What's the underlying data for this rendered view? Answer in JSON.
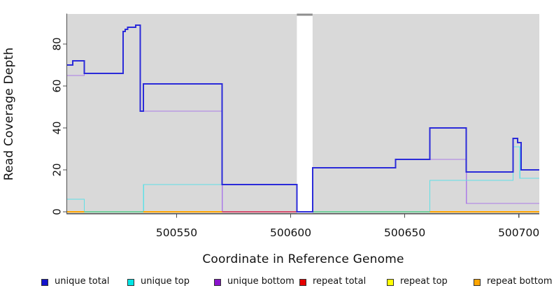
{
  "figure": {
    "background": "#ffffff",
    "plot_background": "#d9d9d9",
    "axis_color": "#4d4d4d",
    "text_color": "#111111"
  },
  "chart_data": {
    "type": "line",
    "subtype": "step-coverage-plot",
    "title": "",
    "xlabel": "Coordinate in Reference Genome",
    "ylabel": "Read Coverage Depth",
    "xlim": [
      500502,
      500709
    ],
    "ylim": [
      0,
      89
    ],
    "grid": false,
    "legend_position": "bottom",
    "x_ticks": [
      "500550",
      "500600",
      "500650",
      "500700"
    ],
    "x_tick_values": [
      500550,
      500600,
      500650,
      500700
    ],
    "y_ticks": [
      "0",
      "20",
      "40",
      "60",
      "80"
    ],
    "y_tick_values": [
      0,
      20,
      40,
      60,
      80
    ],
    "gap_region": {
      "x1": 500602.7,
      "x2": 500609.6,
      "fill": "#ffffff",
      "top_bar_color": "#8e8e8e"
    },
    "series": [
      {
        "name": "unique total",
        "color": "#2b2bd9",
        "stroke_width": 2,
        "points": [
          [
            500502,
            70
          ],
          [
            500504.5,
            72
          ],
          [
            500509.5,
            66
          ],
          [
            500526.5,
            86
          ],
          [
            500527.5,
            87
          ],
          [
            500528.5,
            88
          ],
          [
            500532,
            89
          ],
          [
            500534,
            48
          ],
          [
            500535.5,
            61
          ],
          [
            500570,
            13
          ],
          [
            500602.7,
            0
          ],
          [
            500609.6,
            21
          ],
          [
            500646,
            25
          ],
          [
            500661,
            40
          ],
          [
            500677,
            19
          ],
          [
            500697.5,
            35
          ],
          [
            500699.5,
            33
          ],
          [
            500701,
            20
          ],
          [
            500709,
            20
          ]
        ]
      },
      {
        "name": "unique top",
        "color": "#5fe0e6",
        "stroke_width": 1.4,
        "points": [
          [
            500502,
            6
          ],
          [
            500509.5,
            0
          ],
          [
            500535.5,
            13
          ],
          [
            500602.7,
            0
          ],
          [
            500661,
            15
          ],
          [
            500697.5,
            31
          ],
          [
            500700.5,
            16
          ],
          [
            500709,
            16
          ]
        ]
      },
      {
        "name": "unique bottom",
        "color": "#ac7be8",
        "stroke_width": 1.4,
        "points": [
          [
            500502,
            65
          ],
          [
            500509.5,
            66
          ],
          [
            500526.5,
            86
          ],
          [
            500527.5,
            87
          ],
          [
            500528.5,
            88
          ],
          [
            500532,
            89
          ],
          [
            500534,
            48
          ],
          [
            500570,
            0
          ],
          [
            500609.6,
            21
          ],
          [
            500646,
            25
          ],
          [
            500677,
            4
          ],
          [
            500709,
            4
          ]
        ]
      },
      {
        "name": "repeat total",
        "color": "#dc1432",
        "stroke_width": 1.6,
        "points": [
          [
            500502,
            0
          ],
          [
            500709,
            0
          ]
        ]
      },
      {
        "name": "repeat top",
        "color": "#f0f000",
        "stroke_width": 1.6,
        "points": [
          [
            500502,
            0
          ],
          [
            500709,
            0
          ]
        ]
      },
      {
        "name": "repeat bottom",
        "color": "#ffa500",
        "stroke_width": 2,
        "points": [
          [
            500502,
            0
          ],
          [
            500709,
            0
          ]
        ]
      }
    ],
    "zero_line_segments": [
      {
        "x1": 500502,
        "x2": 500509.5,
        "color": "#ffa500",
        "width": 2
      },
      {
        "x1": 500509.5,
        "x2": 500535.5,
        "color": "#72ce9b",
        "width": 1.6
      },
      {
        "x1": 500535.5,
        "x2": 500570,
        "color": "#ffa500",
        "width": 2
      },
      {
        "x1": 500570,
        "x2": 500602.7,
        "color": "#d64d6e",
        "width": 1.6
      },
      {
        "x1": 500609.6,
        "x2": 500661,
        "color": "#72ce9b",
        "width": 1.6
      },
      {
        "x1": 500661,
        "x2": 500709,
        "color": "#ffa500",
        "width": 2
      }
    ]
  },
  "legend": {
    "items": [
      {
        "label": "unique total",
        "color": "#1414cc"
      },
      {
        "label": "unique top",
        "color": "#00e6e6"
      },
      {
        "label": "unique bottom",
        "color": "#8a14cc"
      },
      {
        "label": "repeat total",
        "color": "#e60000"
      },
      {
        "label": "repeat top",
        "color": "#ffff00"
      },
      {
        "label": "repeat bottom",
        "color": "#ffa500"
      }
    ]
  }
}
